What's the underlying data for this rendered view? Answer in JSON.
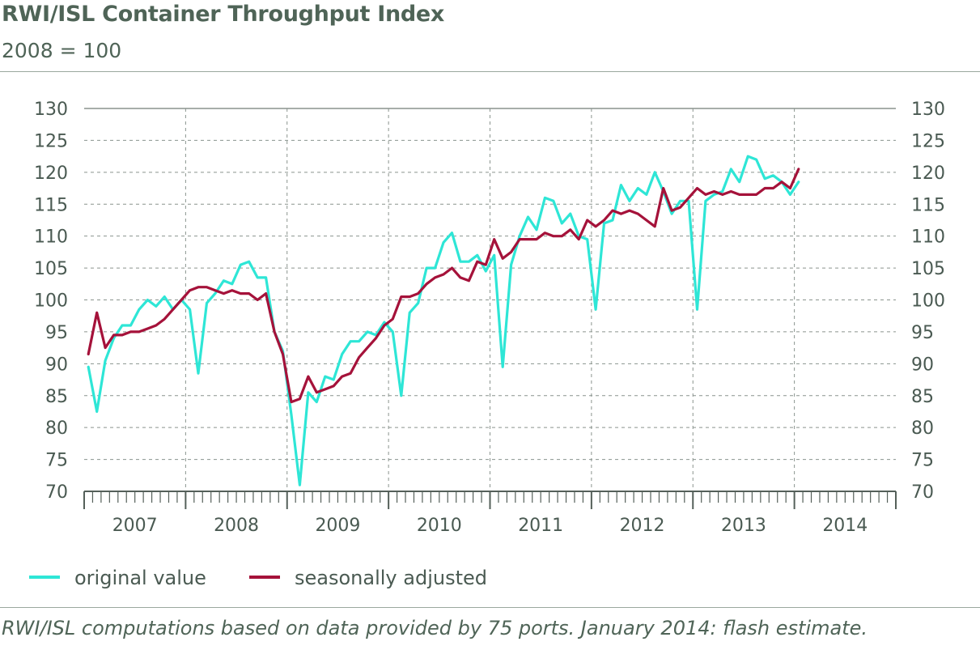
{
  "header": {
    "title": "RWI/ISL Container Throughput Index",
    "subtitle": "2008 = 100"
  },
  "footnote": "RWI/ISL computations based on data provided by 75 ports. January 2014: flash estimate.",
  "colors": {
    "original": "#2ee6d6",
    "seasonal": "#a5123a",
    "grid": "#8a948e",
    "axis": "#55605a"
  },
  "chart_data": {
    "type": "line",
    "title": "RWI/ISL Container Throughput Index",
    "subtitle": "2008 = 100",
    "ylim": [
      70,
      130
    ],
    "yticks": [
      70,
      75,
      80,
      85,
      90,
      95,
      100,
      105,
      110,
      115,
      120,
      125,
      130
    ],
    "x_start": "2007-01",
    "years": [
      "2007",
      "2008",
      "2009",
      "2010",
      "2011",
      "2012",
      "2013",
      "2014"
    ],
    "grid": true,
    "legend_position": "bottom-left",
    "series": [
      {
        "name": "original value",
        "color": "#2ee6d6",
        "values": [
          89.5,
          82.5,
          90.5,
          94.0,
          96.0,
          96.0,
          98.5,
          100.0,
          99.0,
          100.5,
          98.5,
          100.0,
          98.5,
          88.5,
          99.5,
          101.0,
          103.0,
          102.5,
          105.5,
          106.0,
          103.5,
          103.5,
          95.0,
          92.0,
          82.0,
          71.0,
          85.5,
          84.0,
          88.0,
          87.5,
          91.5,
          93.5,
          93.5,
          95.0,
          94.5,
          96.5,
          95.0,
          85.0,
          98.0,
          99.5,
          105.0,
          105.0,
          109.0,
          110.5,
          106.0,
          106.0,
          107.0,
          104.5,
          107.0,
          89.5,
          105.5,
          110.0,
          113.0,
          111.0,
          116.0,
          115.5,
          112.0,
          113.5,
          110.0,
          109.5,
          98.5,
          112.0,
          112.5,
          118.0,
          115.5,
          117.5,
          116.5,
          120.0,
          117.0,
          113.5,
          115.5,
          115.5,
          98.5,
          115.5,
          116.5,
          117.0,
          120.5,
          118.5,
          122.5,
          122.0,
          119.0,
          119.5,
          118.5,
          116.5,
          118.5
        ],
        "x_end": "2014-01"
      },
      {
        "name": "seasonally adjusted",
        "color": "#a5123a",
        "values": [
          91.5,
          98.0,
          92.5,
          94.5,
          94.5,
          95.0,
          95.0,
          95.5,
          96.0,
          97.0,
          98.5,
          100.0,
          101.5,
          102.0,
          102.0,
          101.5,
          101.0,
          101.5,
          101.0,
          101.0,
          100.0,
          101.0,
          95.0,
          91.5,
          84.0,
          84.5,
          88.0,
          85.5,
          86.0,
          86.5,
          88.0,
          88.5,
          91.0,
          92.5,
          94.0,
          96.0,
          97.0,
          100.5,
          100.5,
          101.0,
          102.5,
          103.5,
          104.0,
          105.0,
          103.5,
          103.0,
          106.0,
          105.5,
          109.5,
          106.5,
          107.5,
          109.5,
          109.5,
          109.5,
          110.5,
          110.0,
          110.0,
          111.0,
          109.5,
          112.5,
          111.5,
          112.5,
          114.0,
          113.5,
          114.0,
          113.5,
          112.5,
          111.5,
          117.5,
          114.0,
          114.5,
          116.0,
          117.5,
          116.5,
          117.0,
          116.5,
          117.0,
          116.5,
          116.5,
          116.5,
          117.5,
          117.5,
          118.5,
          117.5,
          120.5
        ],
        "x_end": "2014-01"
      }
    ]
  }
}
